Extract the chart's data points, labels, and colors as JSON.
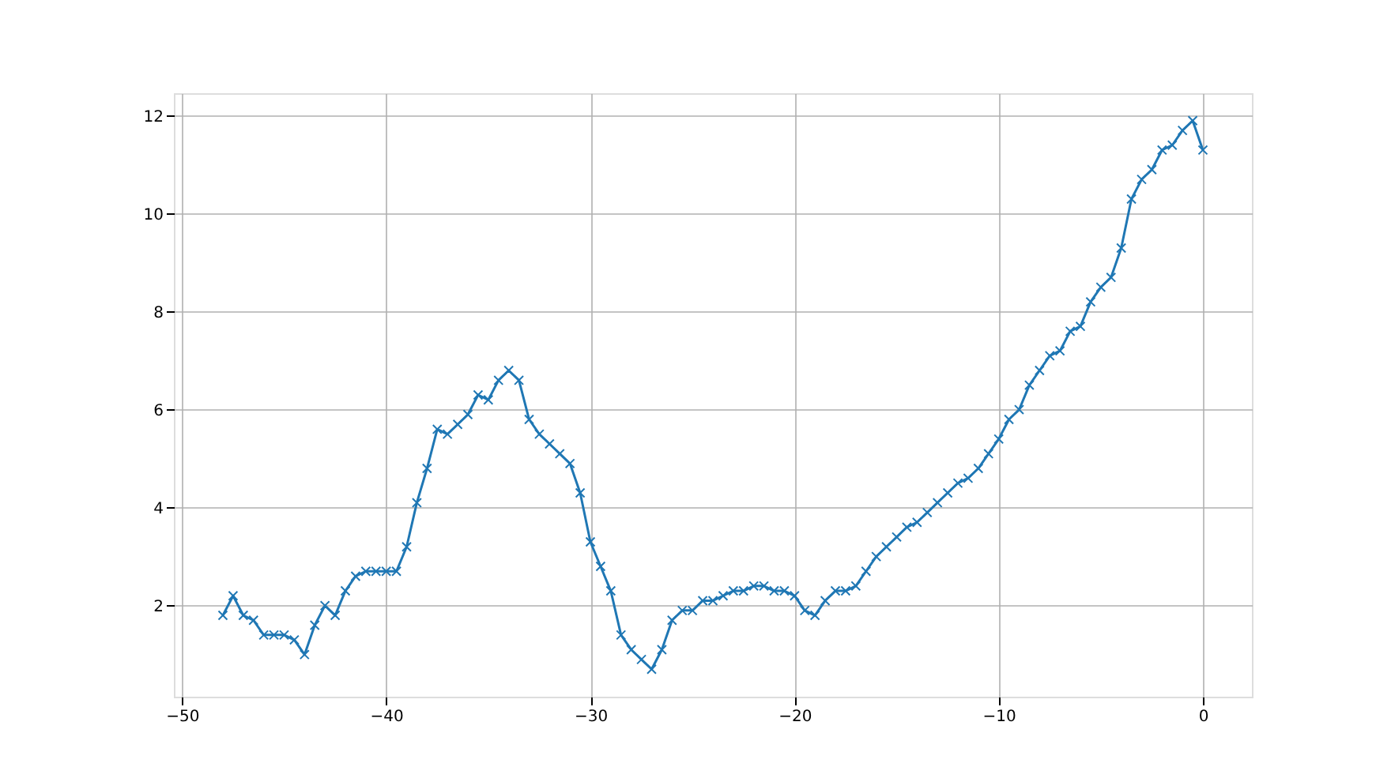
{
  "chart_data": {
    "type": "line",
    "color": "#1f77b4",
    "marker": "cross",
    "line_style": "solid",
    "grid": true,
    "x": [
      -48,
      -47.5,
      -47,
      -46.5,
      -46,
      -45.5,
      -45,
      -44.5,
      -44,
      -43.5,
      -43,
      -42.5,
      -42,
      -41.5,
      -41,
      -40.5,
      -40,
      -39.5,
      -39,
      -38.5,
      -38,
      -37.5,
      -37,
      -36.5,
      -36,
      -35.5,
      -35,
      -34.5,
      -34,
      -33.5,
      -33,
      -32.5,
      -32,
      -31.5,
      -31,
      -30.5,
      -30,
      -29.5,
      -29,
      -28.5,
      -28,
      -27.5,
      -27,
      -26.5,
      -26,
      -25.5,
      -25,
      -24.5,
      -24,
      -23.5,
      -23,
      -22.5,
      -22,
      -21.5,
      -21,
      -20.5,
      -20,
      -19.5,
      -19,
      -18.5,
      -18,
      -17.5,
      -17,
      -16.5,
      -16,
      -15.5,
      -15,
      -14.5,
      -14,
      -13.5,
      -13,
      -12.5,
      -12,
      -11.5,
      -11,
      -10.5,
      -10,
      -9.5,
      -9,
      -8.5,
      -8,
      -7.5,
      -7,
      -6.5,
      -6,
      -5.5,
      -5,
      -4.5,
      -4,
      -3.5,
      -3,
      -2.5,
      -2,
      -1.5,
      -1,
      -0.5,
      0
    ],
    "values": [
      1.8,
      2.2,
      1.8,
      1.7,
      1.4,
      1.4,
      1.4,
      1.3,
      1.0,
      1.6,
      2.0,
      1.8,
      2.3,
      2.6,
      2.7,
      2.7,
      2.7,
      2.7,
      3.2,
      4.1,
      4.8,
      5.6,
      5.5,
      5.7,
      5.9,
      6.3,
      6.2,
      6.6,
      6.8,
      6.6,
      5.8,
      5.5,
      5.3,
      5.1,
      4.9,
      4.3,
      3.3,
      2.8,
      2.3,
      1.4,
      1.1,
      0.9,
      0.7,
      1.1,
      1.7,
      1.9,
      1.9,
      2.1,
      2.1,
      2.2,
      2.3,
      2.3,
      2.4,
      2.4,
      2.3,
      2.3,
      2.2,
      1.9,
      1.8,
      2.1,
      2.3,
      2.3,
      2.4,
      2.7,
      3.0,
      3.2,
      3.4,
      3.6,
      3.7,
      3.9,
      4.1,
      4.3,
      4.5,
      4.6,
      4.8,
      5.1,
      5.4,
      5.8,
      6.0,
      6.5,
      6.8,
      7.1,
      7.2,
      7.6,
      7.7,
      8.2,
      8.5,
      8.7,
      9.3,
      10.3,
      10.7,
      10.9,
      11.3,
      11.4,
      11.7,
      11.9,
      11.3
    ],
    "xlim": [
      -50.4,
      2.4
    ],
    "xticks": [
      -50,
      -40,
      -30,
      -20,
      -10,
      0
    ],
    "ylim": [
      0.14,
      12.46
    ],
    "yticks": [
      2,
      4,
      6,
      8,
      10,
      12
    ]
  }
}
